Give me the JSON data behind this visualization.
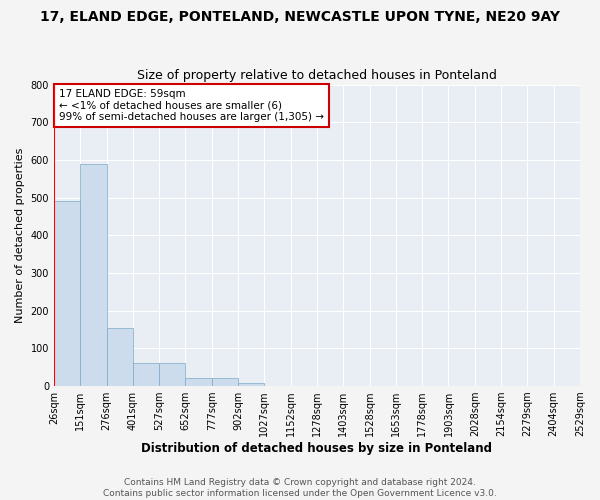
{
  "title1": "17, ELAND EDGE, PONTELAND, NEWCASTLE UPON TYNE, NE20 9AY",
  "title2": "Size of property relative to detached houses in Ponteland",
  "xlabel": "Distribution of detached houses by size in Ponteland",
  "ylabel": "Number of detached properties",
  "bar_values": [
    490,
    590,
    153,
    60,
    60,
    22,
    22,
    9,
    0,
    0,
    0,
    0,
    0,
    0,
    0,
    0,
    0,
    0,
    0,
    0
  ],
  "bar_color": "#ccdcec",
  "bar_edge_color": "#7aaac8",
  "x_labels": [
    "26sqm",
    "151sqm",
    "276sqm",
    "401sqm",
    "527sqm",
    "652sqm",
    "777sqm",
    "902sqm",
    "1027sqm",
    "1152sqm",
    "1278sqm",
    "1403sqm",
    "1528sqm",
    "1653sqm",
    "1778sqm",
    "1903sqm",
    "2028sqm",
    "2154sqm",
    "2279sqm",
    "2404sqm",
    "2529sqm"
  ],
  "ylim": [
    0,
    800
  ],
  "yticks": [
    0,
    100,
    200,
    300,
    400,
    500,
    600,
    700,
    800
  ],
  "annotation_text": "17 ELAND EDGE: 59sqm\n← <1% of detached houses are smaller (6)\n99% of semi-detached houses are larger (1,305) →",
  "annotation_box_color": "#ffffff",
  "annotation_box_edge_color": "#cc0000",
  "footer1": "Contains HM Land Registry data © Crown copyright and database right 2024.",
  "footer2": "Contains public sector information licensed under the Open Government Licence v3.0.",
  "plot_bg_color": "#e8eef4",
  "fig_bg_color": "#f4f4f4",
  "grid_color": "#ffffff",
  "title1_fontsize": 10,
  "title2_fontsize": 9,
  "xlabel_fontsize": 8.5,
  "ylabel_fontsize": 8,
  "tick_fontsize": 7,
  "annotation_fontsize": 7.5,
  "footer_fontsize": 6.5
}
